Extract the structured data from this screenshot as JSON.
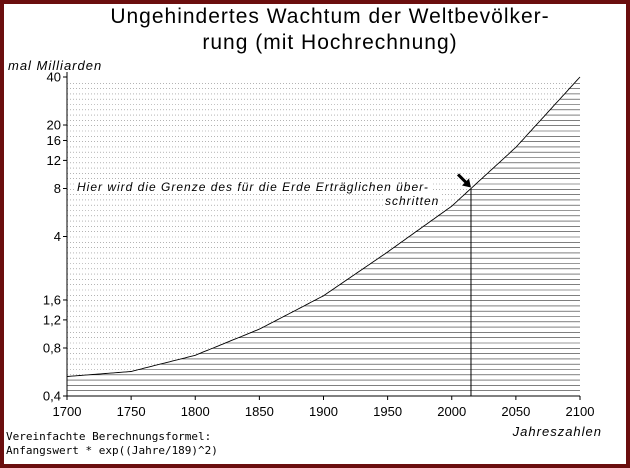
{
  "chart_data": {
    "type": "line",
    "title_line1": "Ungehindertes Wachtum der Weltbevölker-",
    "title_line2": "rung (mit Hochrechnung)",
    "ylabel": "mal Milliarden",
    "xlabel": "Jahreszahlen",
    "yscale": "log",
    "ylim": [
      0.4,
      40
    ],
    "xlim": [
      1700,
      2100
    ],
    "xticks": [
      {
        "value": 1700,
        "label": "1700"
      },
      {
        "value": 1750,
        "label": "1750"
      },
      {
        "value": 1800,
        "label": "1800"
      },
      {
        "value": 1850,
        "label": "1850"
      },
      {
        "value": 1900,
        "label": "1900"
      },
      {
        "value": 1950,
        "label": "1950"
      },
      {
        "value": 2000,
        "label": "2000"
      },
      {
        "value": 2050,
        "label": "2050"
      },
      {
        "value": 2100,
        "label": "2100"
      }
    ],
    "yticks": [
      {
        "value": 0.4,
        "label": "0,4"
      },
      {
        "value": 0.8,
        "label": "0,8"
      },
      {
        "value": 1.2,
        "label": "1,2"
      },
      {
        "value": 1.6,
        "label": "1,6"
      },
      {
        "value": 4,
        "label": "4"
      },
      {
        "value": 8,
        "label": "8"
      },
      {
        "value": 12,
        "label": "12"
      },
      {
        "value": 16,
        "label": "16"
      },
      {
        "value": 20,
        "label": "20"
      },
      {
        "value": 40,
        "label": "40"
      }
    ],
    "series": [
      {
        "x": [
          1700,
          1750,
          1800,
          1850,
          1900,
          1950,
          2000,
          2015,
          2050,
          2100
        ],
        "y": [
          0.53,
          0.57,
          0.72,
          1.05,
          1.7,
          3.2,
          6.2,
          8.0,
          14.5,
          40
        ]
      }
    ],
    "marker_year": 2015,
    "annotation_line1": "Hier wird die Grenze des für die Erde Erträglichen über-",
    "annotation_line2": "schritten",
    "formula_line1": "Vereinfachte Berechnungsformel:",
    "formula_line2": "Anfangswert * exp((Jahre/189)^2)",
    "colors": {
      "frame": "#6b0e0e",
      "line": "#000000",
      "grid": "#555555"
    }
  }
}
